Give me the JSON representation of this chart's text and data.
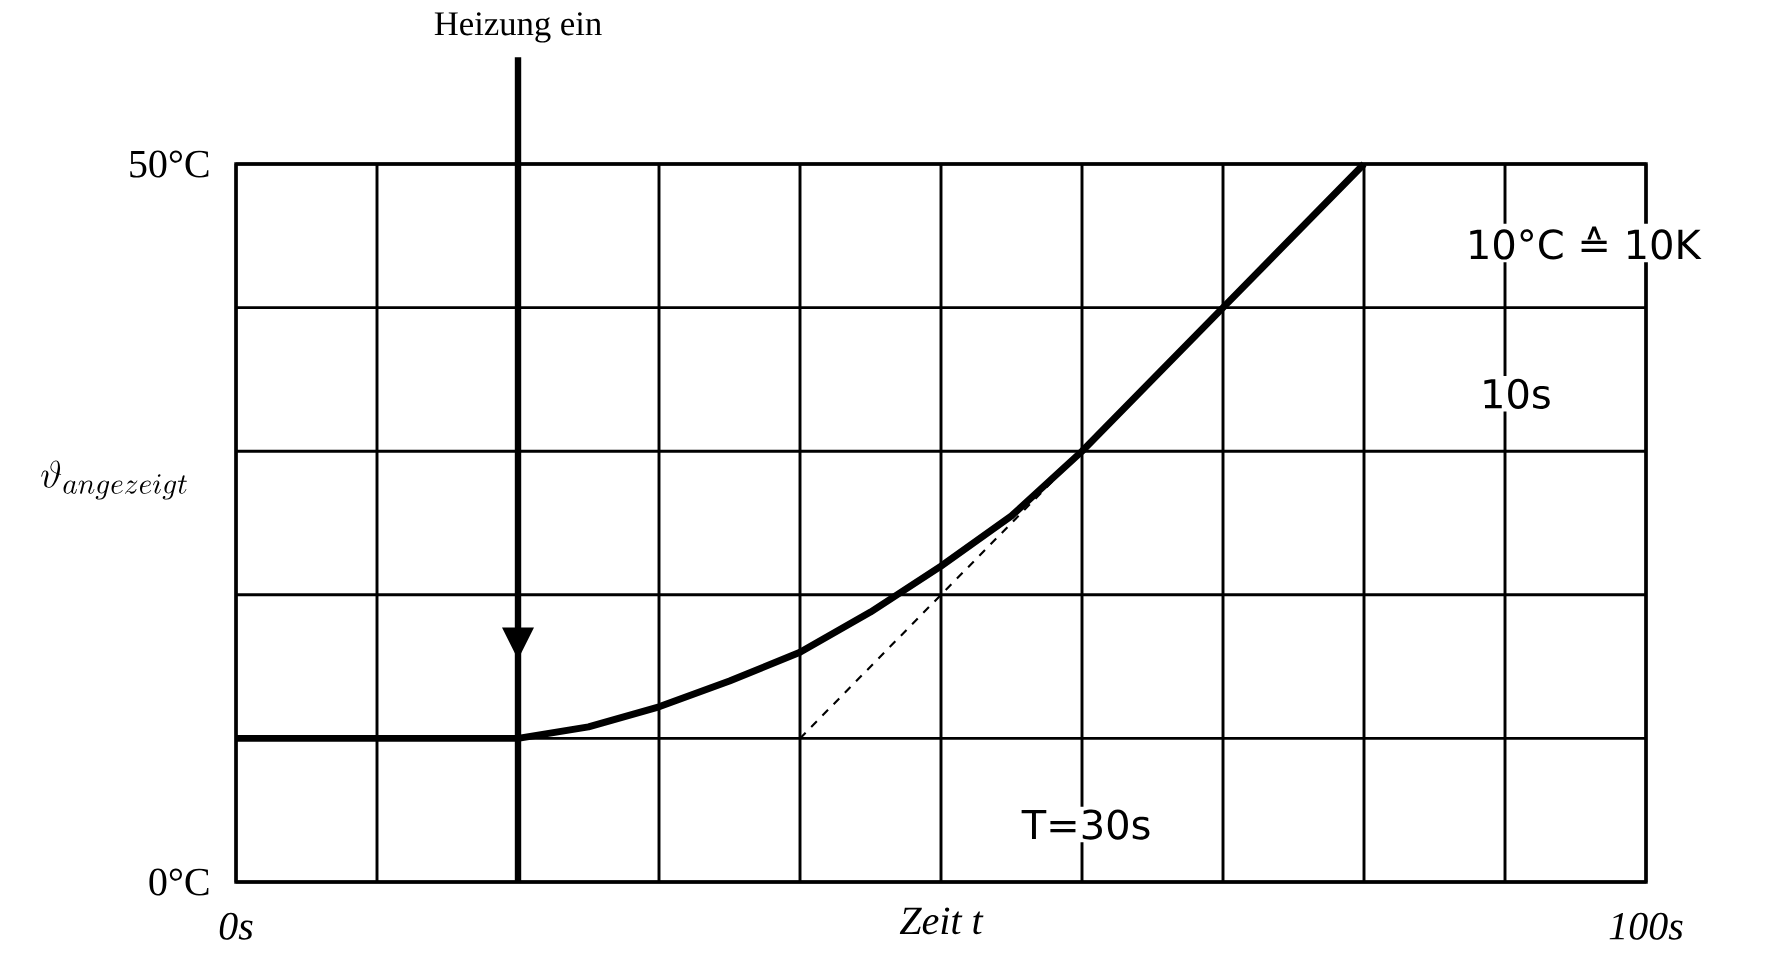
{
  "chart_data": {
    "type": "line",
    "xlabel": "Zeit t",
    "ylabel": "\\vartheta_{angezeigt}",
    "xlim": [
      0,
      100
    ],
    "ylim": [
      0,
      50
    ],
    "xticks": [
      {
        "value": 0,
        "label": "0s"
      },
      {
        "value": 10,
        "label": null
      },
      {
        "value": 20,
        "label": null
      },
      {
        "value": 30,
        "label": null
      },
      {
        "value": 40,
        "label": null
      },
      {
        "value": 50,
        "label": null
      },
      {
        "value": 60,
        "label": null
      },
      {
        "value": 70,
        "label": null
      },
      {
        "value": 80,
        "label": null
      },
      {
        "value": 90,
        "label": null
      },
      {
        "value": 100,
        "label": "100s"
      }
    ],
    "yticks": [
      {
        "value": 0,
        "label": "0°C"
      },
      {
        "value": 10,
        "label": null
      },
      {
        "value": 20,
        "label": null
      },
      {
        "value": 30,
        "label": null
      },
      {
        "value": 40,
        "label": null
      },
      {
        "value": 50,
        "label": "50°C"
      }
    ],
    "grid": true,
    "series": [
      {
        "color": "#000000",
        "line_style": "solid",
        "x": [
          0,
          10,
          20,
          25,
          30,
          35,
          40,
          45,
          50,
          55,
          60,
          70,
          80
        ],
        "values": [
          10,
          10,
          10,
          10.8,
          12.2,
          14,
          16,
          18.8,
          22,
          25.5,
          30,
          40,
          50
        ]
      },
      {
        "color": "#000000",
        "line_style": "dashed",
        "x": [
          40,
          58
        ],
        "values": [
          10,
          28
        ]
      }
    ],
    "ref_lines": [
      {
        "axis": "x",
        "value": 20,
        "label": "Heizung ein"
      }
    ],
    "annotations": [
      "T=30s",
      "10°C ≙ 10K",
      "10s"
    ]
  }
}
